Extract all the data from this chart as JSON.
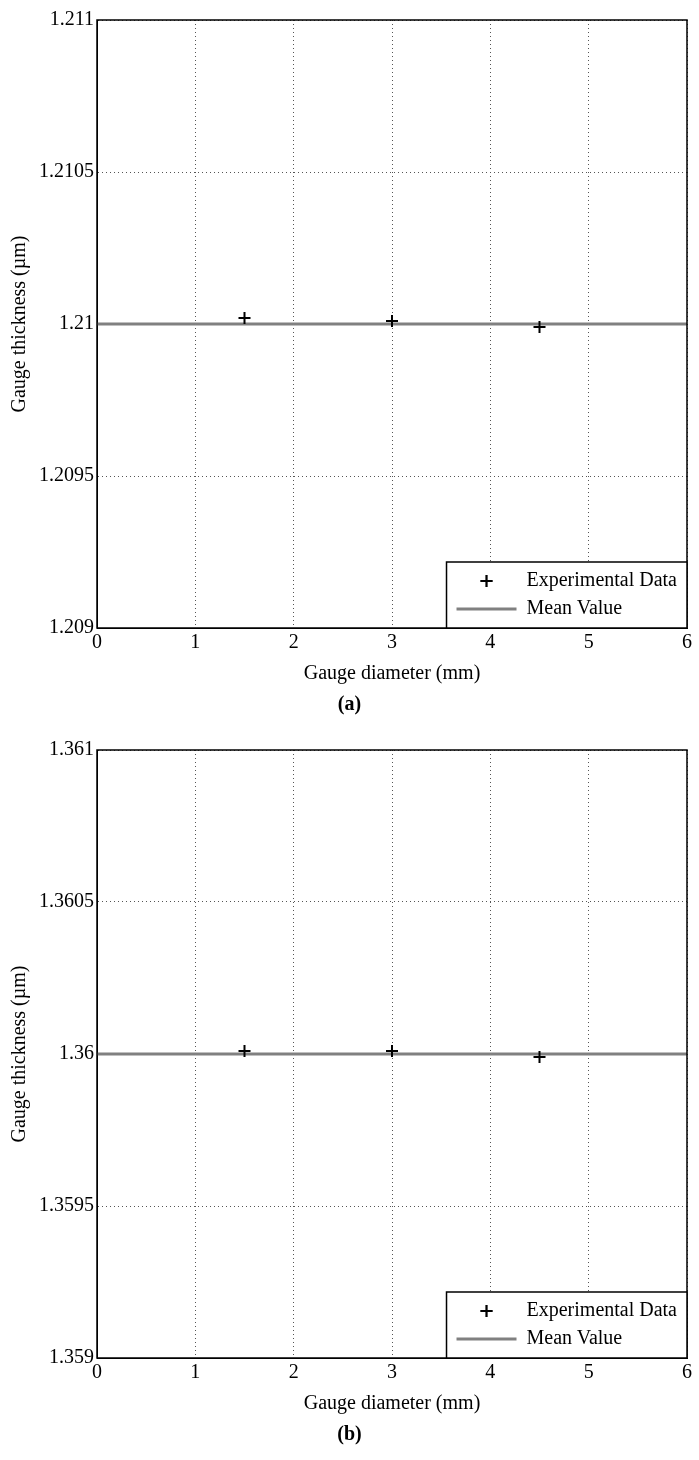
{
  "chart_data": [
    {
      "type": "scatter",
      "xlabel": "Gauge diameter (mm)",
      "ylabel": "Gauge thickness (µm)",
      "annotations": [
        "(a)"
      ],
      "xlim": [
        0,
        6
      ],
      "xticks": [
        0,
        1,
        2,
        3,
        4,
        5,
        6
      ],
      "ylim": [
        1.209,
        1.211
      ],
      "yticks": [
        1.209,
        1.2095,
        1.21,
        1.2105,
        1.211
      ],
      "grid": true,
      "legend": "bottom right",
      "series": [
        {
          "name": "Experimental Data",
          "type": "scatter",
          "marker": "cross",
          "color": "#000000",
          "x": [
            1.5,
            3,
            4.5
          ],
          "values": [
            1.21002,
            1.21001,
            1.20999
          ]
        },
        {
          "name": "Mean Value",
          "type": "line",
          "marker": "none",
          "color": "#808080",
          "x": [
            0,
            6
          ],
          "values": [
            1.21,
            1.21
          ]
        }
      ]
    },
    {
      "type": "scatter",
      "xlabel": "Gauge diameter (mm)",
      "ylabel": "Gauge thickness (µm)",
      "annotations": [
        "(b)"
      ],
      "xlim": [
        0,
        6
      ],
      "xticks": [
        0,
        1,
        2,
        3,
        4,
        5,
        6
      ],
      "ylim": [
        1.359,
        1.361
      ],
      "yticks": [
        1.359,
        1.3595,
        1.36,
        1.3605,
        1.361
      ],
      "grid": true,
      "legend": "bottom right",
      "series": [
        {
          "name": "Experimental Data",
          "type": "scatter",
          "marker": "cross",
          "color": "#000000",
          "x": [
            1.5,
            3,
            4.5
          ],
          "values": [
            1.36001,
            1.36001,
            1.35999
          ]
        },
        {
          "name": "Mean Value",
          "type": "line",
          "marker": "none",
          "color": "#808080",
          "x": [
            0,
            6
          ],
          "values": [
            1.36,
            1.36
          ]
        }
      ]
    }
  ]
}
